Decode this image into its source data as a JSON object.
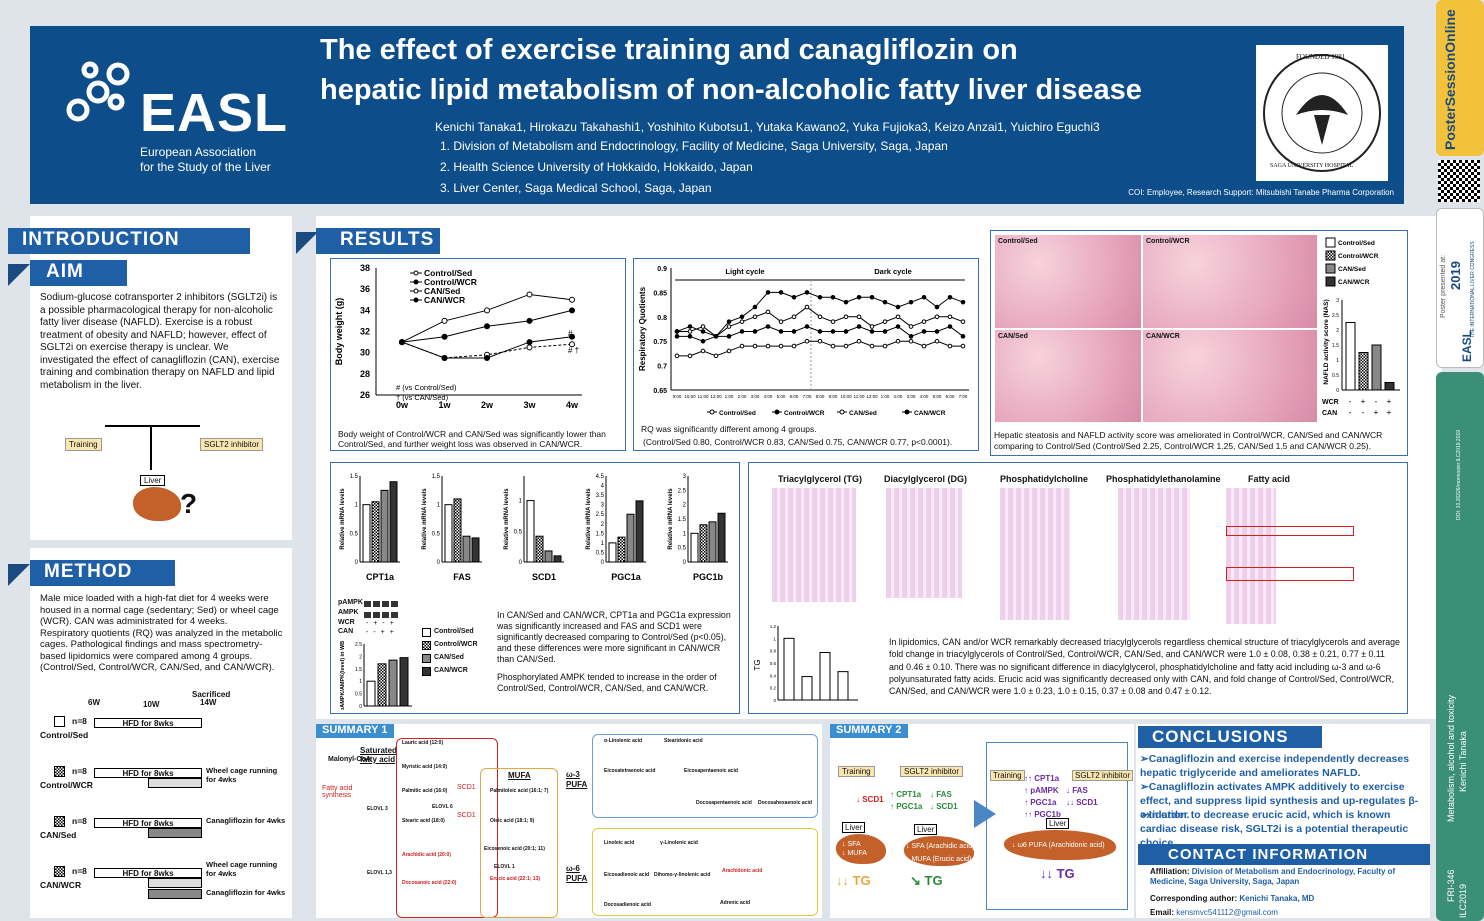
{
  "header": {
    "logo": "EASL",
    "org1": "European Association",
    "org2": "for the Study of the Liver",
    "title_line1": "The effect of exercise training and canagliflozin on",
    "title_line2": "hepatic lipid metabolism of non-alcoholic fatty liver disease",
    "authors": "Kenichi Tanaka1, Hirokazu Takahashi1, Yoshihito Kubotsu1, Yutaka Kawano2, Yuka Fujioka3, Keizo Anzai1, Yuichiro Eguchi3",
    "aff1": "1. Division of Metabolism and Endocrinology, Facility of Medicine, Saga University, Saga, Japan",
    "aff2": "2. Health Science University of Hokkaido, Hokkaido, Japan",
    "aff3": "3. Liver Center, Saga Medical School, Saga, Japan",
    "coi": "COI: Employee, Research Support: Mitsubishi Tanabe Pharma Corporation",
    "seal_top": "FOUNDED 1981",
    "seal_bottom": "SAGA UNIVERSITY HOSPITAL"
  },
  "intro": {
    "heading": "INTRODUCTION",
    "aim": "AIM",
    "text": "Sodium-glucose cotransporter 2 inhibitors (SGLT2i) is a possible pharmacological therapy for non-alcoholic fatty liver disease (NAFLD). Exercise is a robust treatment of obesity and NAFLD; however, effect of SGLT2i on exercise therapy is unclear. We investigated the effect of canagliflozin (CAN), exercise training and combination therapy on NAFLD and lipid metabolism in the liver.",
    "training": "Training",
    "sglt2": "SGLT2 inhibitor",
    "liver": "Liver",
    "q": "?"
  },
  "method": {
    "heading": "METHOD",
    "text1": "Male mice loaded with a high-fat diet for 4 weeks were housed in a normal cage (sedentary; Sed) or wheel cage (WCR). CAN was administrated for 4 weeks.",
    "text2": "Respiratory quotients (RQ) was analyzed in the metabolic cages. Pathological findings and mass spectrometry-based lipidomics were compared among 4 groups.",
    "text3": "(Control/Sed, Control/WCR, CAN/Sed, and CAN/WCR).",
    "sacrificed": "Sacrificed",
    "w6": "6W",
    "w10": "10W",
    "w14": "14W",
    "groups": [
      {
        "n": "n=8",
        "name": "Control/Sed",
        "hfd": "HFD for 8wks",
        "extra": ""
      },
      {
        "n": "n=8",
        "name": "Control/WCR",
        "hfd": "HFD for 8wks",
        "extra": "Wheel cage running for 4wks"
      },
      {
        "n": "n=8",
        "name": "CAN/Sed",
        "hfd": "HFD for 8wks",
        "extra": "Canagliflozin for 4wks"
      },
      {
        "n": "n=8",
        "name": "CAN/WCR",
        "hfd": "HFD for 8wks",
        "extra": "Wheel cage running for 4wks",
        "extra2": "Canagliflozin for 4wks"
      }
    ]
  },
  "results": {
    "heading": "RESULTS",
    "bw_caption": "Body weight of Control/WCR and CAN/Sed was significantly lower than Control/Sed, and further weight loss was observed in CAN/WCR.",
    "rq_caption1": "RQ was significantly different among 4 groups.",
    "rq_caption2": "(Control/Sed 0.80, Control/WCR 0.83, CAN/Sed 0.75, CAN/WCR 0.77, p<0.0001).",
    "histo_caption": "Hepatic steatosis and NAFLD activity score was ameliorated in Control/WCR, CAN/Sed and CAN/WCR comparing to Control/Sed (Control/Sed 2.25, Control/WCR 1.25, CAN/Sed 1.5 and CAN/WCR 0.25).",
    "mrna_caption": "In CAN/Sed and CAN/WCR, CPT1a and PGC1a expression was significantly increased and FAS and SCD1 were significantly decreased comparing to Control/Sed (p<0.05), and these differences were more significant in CAN/WCR than CAN/Sed.",
    "ampk_caption": "Phosphorylated AMPK tended to increase in the order of Control/Sed, Control/WCR, CAN/Sed, and CAN/WCR.",
    "lipid_caption": "In lipidomics, CAN and/or WCR remarkably decreased triacylglycerols regardless chemical structure of triacylglycerols and average fold change in triacylglycerols of Control/Sed, Control/WCR, CAN/Sed, and CAN/WCR were 1.0 ± 0.08, 0.38 ± 0.21, 0.77 ± 0.11 and 0.46 ± 0.10. There was no significant difference in diacylglycerol, phosphatidylcholine and fatty acid including ω-3 and ω-6 polyunsaturated fatty acids. Erucic acid was significantly decreased only with CAN, and fold change of Control/Sed, Control/WCR, CAN/Sed, and CAN/WCR were 1.0 ± 0.23, 1.0 ± 0.15, 0.37 ± 0.08 and 0.47 ± 0.12.",
    "lipid_titles": [
      "Triacylglycerol (TG)",
      "Diacylglycerol (DG)",
      "Phosphatidylcholine",
      "Phosphatidylethanolamine",
      "Fatty acid"
    ],
    "histo_labels": [
      "Control/Sed",
      "Control/WCR",
      "CAN/Sed",
      "CAN/WCR"
    ],
    "nas_legend": [
      "Control/Sed",
      "Control/WCR",
      "CAN/Sed",
      "CAN/WCR"
    ],
    "nas_ylabel": "NAFLD activity score (NAS)",
    "wcr_label": "WCR",
    "can_label": "CAN",
    "wcr_signs": [
      "-",
      "+",
      "-",
      "+"
    ],
    "can_signs": [
      "-",
      "-",
      "+",
      "+"
    ],
    "mrna_genes": [
      "CPT1a",
      "FAS",
      "SCD1",
      "PGC1a",
      "PGC1b"
    ],
    "mrna_ylabel": "Relative mRNA levels",
    "ampk_labels": [
      "pAMPK",
      "AMPK",
      "WCR",
      "CAN"
    ],
    "ampk_ylabel": "pAMPK/AMPK(level) in WB",
    "ampk_wcr": [
      "-",
      "+",
      "-",
      "+"
    ],
    "ampk_can": [
      "-",
      "-",
      "+",
      "+"
    ],
    "tg_ylabel": "TG"
  },
  "chart_data": [
    {
      "type": "line",
      "title": "",
      "xlabel": "",
      "ylabel": "Body weight (g)",
      "categories": [
        "0w",
        "1w",
        "2w",
        "3w",
        "4w"
      ],
      "ylim": [
        26,
        38
      ],
      "yticks": [
        26,
        28,
        30,
        32,
        34,
        36,
        38
      ],
      "series": [
        {
          "name": "Control/Sed",
          "values": [
            31,
            33,
            34,
            35.5,
            35
          ]
        },
        {
          "name": "Control/WCR",
          "values": [
            31,
            31.5,
            32.5,
            33,
            34
          ]
        },
        {
          "name": "CAN/Sed",
          "values": [
            31,
            29.5,
            29.8,
            30.5,
            30.8
          ]
        },
        {
          "name": "CAN/WCR",
          "values": [
            31,
            29.5,
            29.5,
            31,
            31.5
          ]
        }
      ],
      "annotations": [
        "# (vs Control/Sed)",
        "† (vs CAN/Sed)",
        "#",
        "# †"
      ],
      "legend": "top-right"
    },
    {
      "type": "line",
      "title": "",
      "xlabel": "",
      "ylabel": "Respiratory Quotients",
      "ylim": [
        0.65,
        0.9
      ],
      "yticks": [
        0.65,
        0.7,
        0.75,
        0.8,
        0.85,
        0.9
      ],
      "phases": [
        "Light cycle",
        "Dark cycle"
      ],
      "x": [
        "9:00",
        "10:00",
        "11:00",
        "12:00",
        "1:00",
        "2:00",
        "3:00",
        "4:00",
        "5:00",
        "6:00",
        "7:00",
        "8:00",
        "9:00",
        "10:00",
        "11:00",
        "12:00",
        "1:00",
        "2:00",
        "3:00",
        "4:00",
        "5:00",
        "6:00",
        "7:00"
      ],
      "series": [
        {
          "name": "Control/Sed",
          "values": [
            0.77,
            0.77,
            0.78,
            0.76,
            0.78,
            0.79,
            0.8,
            0.81,
            0.79,
            0.8,
            0.82,
            0.8,
            0.79,
            0.8,
            0.8,
            0.78,
            0.79,
            0.8,
            0.78,
            0.79,
            0.8,
            0.8,
            0.79
          ]
        },
        {
          "name": "Control/WCR",
          "values": [
            0.77,
            0.78,
            0.77,
            0.76,
            0.79,
            0.8,
            0.82,
            0.85,
            0.85,
            0.84,
            0.85,
            0.84,
            0.84,
            0.83,
            0.84,
            0.84,
            0.83,
            0.82,
            0.83,
            0.84,
            0.82,
            0.84,
            0.83
          ]
        },
        {
          "name": "CAN/Sed",
          "values": [
            0.72,
            0.72,
            0.73,
            0.72,
            0.73,
            0.74,
            0.74,
            0.74,
            0.74,
            0.74,
            0.75,
            0.75,
            0.74,
            0.74,
            0.75,
            0.74,
            0.74,
            0.75,
            0.75,
            0.74,
            0.75,
            0.74,
            0.74
          ]
        },
        {
          "name": "CAN/WCR",
          "values": [
            0.76,
            0.76,
            0.75,
            0.76,
            0.76,
            0.77,
            0.77,
            0.78,
            0.77,
            0.77,
            0.78,
            0.77,
            0.77,
            0.77,
            0.78,
            0.77,
            0.77,
            0.78,
            0.76,
            0.77,
            0.77,
            0.78,
            0.76
          ]
        }
      ],
      "legend": "bottom"
    },
    {
      "type": "bar",
      "title": "",
      "ylabel": "NAFLD activity score (NAS)",
      "categories": [
        "Control/Sed",
        "Control/WCR",
        "CAN/Sed",
        "CAN/WCR"
      ],
      "values": [
        2.25,
        1.25,
        1.5,
        0.25
      ],
      "ylim": [
        0,
        3
      ]
    },
    {
      "type": "bar",
      "title": "",
      "ylabel": "Relative mRNA levels",
      "groups": [
        {
          "name": "CPT1a",
          "values": [
            1,
            1.05,
            1.25,
            1.4
          ],
          "ylim": [
            0,
            1.5
          ]
        },
        {
          "name": "FAS",
          "values": [
            1,
            1.1,
            0.45,
            0.42
          ],
          "ylim": [
            0,
            1.5
          ]
        },
        {
          "name": "SCD1",
          "values": [
            1,
            0.42,
            0.18,
            0.1
          ],
          "ylim": [
            0,
            1.4
          ]
        },
        {
          "name": "PGC1a",
          "values": [
            1,
            1.3,
            2.5,
            3.2
          ],
          "ylim": [
            0,
            4.5
          ]
        },
        {
          "name": "PGC1b",
          "values": [
            1,
            1.3,
            1.4,
            1.7
          ],
          "ylim": [
            0,
            3
          ]
        }
      ]
    },
    {
      "type": "bar",
      "title": "",
      "ylabel": "pAMPK/AMPK(level) in WB",
      "categories": [
        "Control/Sed",
        "Control/WCR",
        "CAN/Sed",
        "CAN/WCR"
      ],
      "values": [
        1,
        1.7,
        1.85,
        1.95
      ],
      "ylim": [
        0,
        2.5
      ]
    },
    {
      "type": "bar",
      "title": "",
      "ylabel": "TG",
      "categories": [
        "Control/Sed",
        "Control/WCR",
        "CAN/Sed",
        "CAN/WCR"
      ],
      "values": [
        1,
        0.38,
        0.77,
        0.46
      ],
      "ylim": [
        0,
        1.2
      ]
    }
  ],
  "summary1": {
    "heading": "SUMMARY 1",
    "malonyl": "Malonyl-CoA",
    "sat": "Saturated fatty acid",
    "mufa": "MUFA",
    "omega3": "ω-3 PUFA",
    "omega6": "ω-6 PUFA",
    "fas_label": "Fatty acid synthesis",
    "scd1": "SCD1",
    "nodes": [
      "Lauric acid (12:0)",
      "Myristic acid (14:0)",
      "Palmitic acid (16:0)",
      "Stearic acid (18:0)",
      "Arachidic acid (20:0)",
      "Docosanoic acid (22:0)",
      "Palmitoleic acid (16:1; 7)",
      "Oleic acid (18:1; 9)",
      "Eicosenoic acid (20:1; 11)",
      "Erucic acid (22:1; 13)",
      "ELOVL 6",
      "ELOVL 3",
      "ELOVL 1",
      "ELOVL 1,3",
      "α-Linolenic acid",
      "Stearidonic acid",
      "Eicosatetraenoic acid",
      "Eicosapentaenoic acid",
      "Docosapentaenoic acid",
      "Docosahexaenoic acid",
      "Linoleic acid",
      "γ-Linolenic acid",
      "Eicosadienoic acid",
      "Dihomo-γ-linolenic acid",
      "Arachidonic acid",
      "Adrenic acid",
      "Docosadienoic acid"
    ]
  },
  "summary2": {
    "heading": "SUMMARY 2",
    "training": "Training",
    "sglt2": "SGLT2 inhibitor",
    "col1": [
      "↓ SCD1"
    ],
    "col2": [
      "↑ CPT1a",
      "↑ PGC1a"
    ],
    "col2b": [
      "↓ FAS",
      "↓ SCD1"
    ],
    "col3": [
      "↑↑ CPT1a",
      "↑ pAMPK",
      "↑ PGC1a",
      "↑↑ PGC1b"
    ],
    "col3b": [
      "↓ FAS",
      "↓↓ SCD1"
    ],
    "liver": "Liver",
    "l1": [
      "↓ SFA",
      "↓ MUFA"
    ],
    "l2": [
      "↓ SFA (Arachidic acid)",
      "↓ MUFA (Erucic acid)"
    ],
    "l3": [
      "↓ ω6 PUFA (Arachidonic acid)"
    ],
    "tg1": "↓↓ TG",
    "tg2": "↘ TG",
    "tg3": "↓↓ TG"
  },
  "conclusions": {
    "heading": "CONCLUSIONS",
    "c1": "➢Canagliflozin and exercise independently decreases hepatic triglyceride and ameliorates NAFLD.",
    "c2": "➢Canagliflozin activates AMPK additively to exercise effect, and suppress lipid synthesis and up-regulates β-oxidation.",
    "c3": "➢In order to decrease erucic acid, which is known cardiac disease risk, SGLT2i is a potential therapeutic choice."
  },
  "contact": {
    "heading": "CONTACT INFORMATION",
    "aff_label": "Affiliation:",
    "aff": "Division of Metabolism and Endocrinology, Faculty of Medicine, Saga University, Saga, Japan",
    "author_label": "Corresponding author:",
    "author": "Kenichi Tanaka, MD",
    "email_label": "Email:",
    "email": "kensmvc541112@gmail.com"
  },
  "sidebar": {
    "brand": "PosterSessionOnline",
    "year": "2019",
    "presented": "Poster presented at:",
    "easl": "EASL",
    "congress": "THE INTERNATIONAL LIVER CONGRESS",
    "doi": "DOI: 10.26226/morressier.ILC2019.2019",
    "topic": "Metabolism, alcohol and toxicity",
    "name": "Kenichi Tanaka",
    "code": "FRI-346",
    "conf": "ILC2019"
  },
  "colors": {
    "header": "#0c4d8a",
    "section": "#1f5fa6",
    "sidebar_green": "#3b8f76",
    "accent_red": "#d02020"
  }
}
